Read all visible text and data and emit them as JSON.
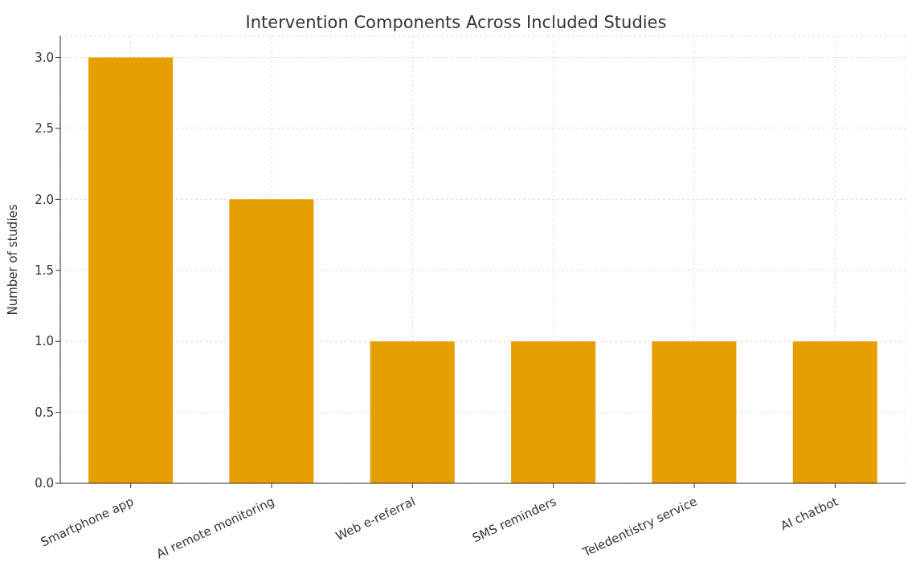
{
  "chart_data": {
    "type": "bar",
    "title": "Intervention Components Across Included Studies",
    "ylabel": "Number of studies",
    "categories": [
      "Smartphone app",
      "AI remote monitoring",
      "Web e-referral",
      "SMS reminders",
      "Teledentistry service",
      "AI chatbot"
    ],
    "values": [
      3,
      2,
      1,
      1,
      1,
      1
    ],
    "color": "#e69f00",
    "ylim": [
      0,
      3.15
    ],
    "yticks": [
      {
        "value": 0,
        "label": "0.0"
      },
      0.5,
      {
        "value": 1,
        "label": "1.0"
      },
      1.5,
      {
        "value": 2,
        "label": "2.0"
      },
      2.5,
      {
        "value": 3,
        "label": "3.0"
      }
    ],
    "grid": true
  }
}
